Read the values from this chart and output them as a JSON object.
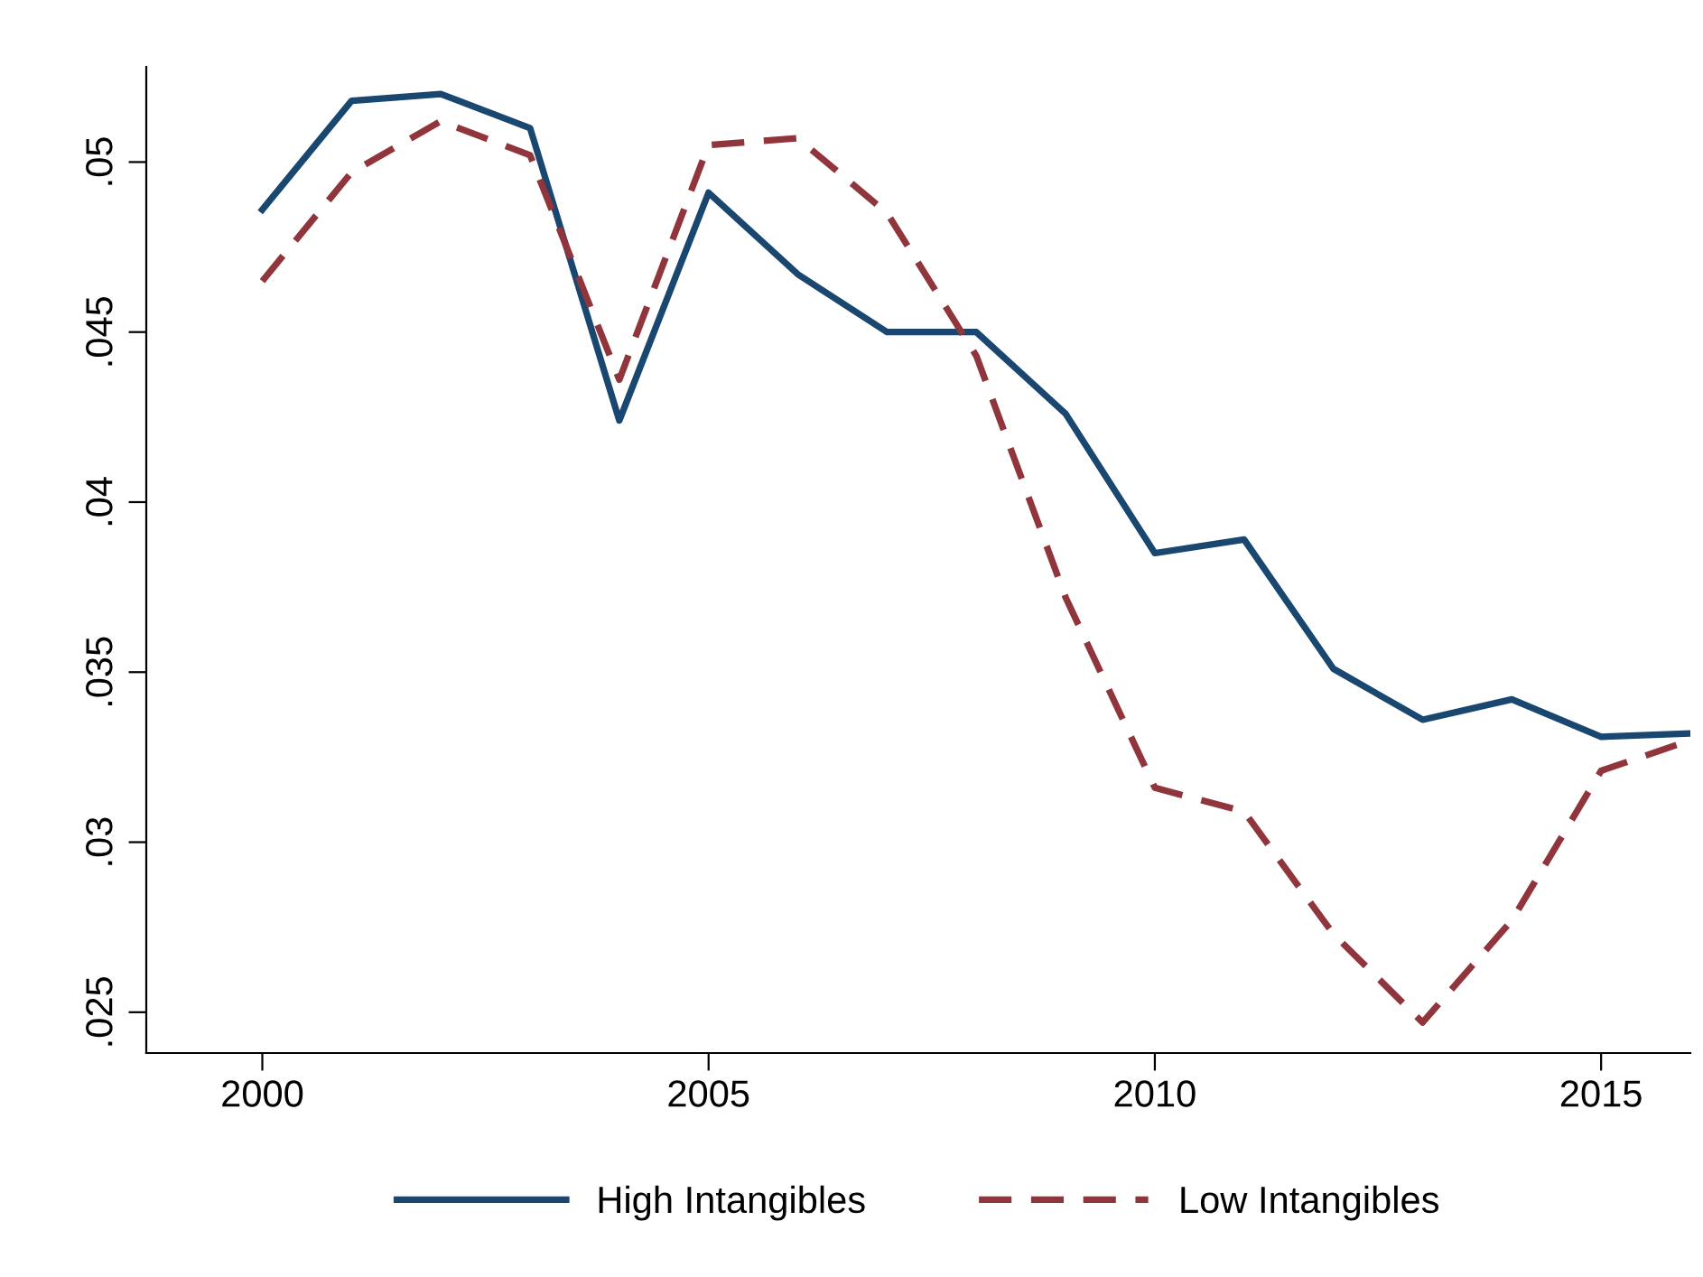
{
  "chart_data": {
    "type": "line",
    "x": [
      2000,
      2001,
      2002,
      2003,
      2004,
      2005,
      2006,
      2007,
      2008,
      2009,
      2010,
      2011,
      2012,
      2013,
      2014,
      2015,
      2016
    ],
    "series": [
      {
        "name": "High Intangibles",
        "color": "#1a476f",
        "line_style": "solid",
        "values": [
          0.0486,
          0.0518,
          0.052,
          0.051,
          0.0424,
          0.0491,
          0.0467,
          0.045,
          0.045,
          0.0426,
          0.0385,
          0.0389,
          0.0351,
          0.0336,
          0.0342,
          0.0331,
          0.0332
        ]
      },
      {
        "name": "Low Intangibles",
        "color": "#90353b",
        "line_style": "dashed",
        "values": [
          0.0465,
          0.0497,
          0.0512,
          0.0502,
          0.0436,
          0.0505,
          0.0507,
          0.0485,
          0.0443,
          0.0372,
          0.0316,
          0.0309,
          0.0273,
          0.0247,
          0.0277,
          0.0321,
          0.033
        ]
      }
    ],
    "xlim": [
      1998.7,
      2016
    ],
    "xticks": [
      2000,
      2005,
      2010,
      2015
    ],
    "ylim": [
      0.0238,
      0.0528
    ],
    "yticks": [
      {
        "value": 0.025,
        "label": ".025"
      },
      {
        "value": 0.03,
        "label": ".03"
      },
      {
        "value": 0.035,
        "label": ".035"
      },
      {
        "value": 0.04,
        "label": ".04"
      },
      {
        "value": 0.045,
        "label": ".045"
      },
      {
        "value": 0.05,
        "label": ".05"
      }
    ],
    "grid": false,
    "legend": "bottom",
    "marker": "none"
  }
}
